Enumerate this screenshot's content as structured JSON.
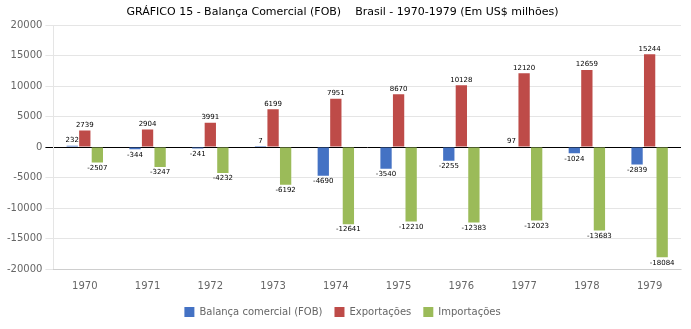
{
  "chart_data": {
    "type": "bar",
    "title": "GRÁFICO 15 - Balança Comercial (FOB)    Brasil - 1970-1979 (Em US$ milhões)",
    "categories": [
      "1970",
      "1971",
      "1972",
      "1973",
      "1974",
      "1975",
      "1976",
      "1977",
      "1978",
      "1979"
    ],
    "series": [
      {
        "name": "Balança comercial (FOB)",
        "color": "#4472C4",
        "values": [
          232,
          -344,
          -241,
          7,
          -4690,
          -3540,
          -2255,
          97,
          -1024,
          -2839
        ]
      },
      {
        "name": "Exportações",
        "color": "#BE4B48",
        "values": [
          2739,
          2904,
          3991,
          6199,
          7951,
          8670,
          10128,
          12120,
          12659,
          15244
        ]
      },
      {
        "name": "Importações",
        "color": "#9BBB59",
        "values": [
          -2507,
          -3247,
          -4232,
          -6192,
          -12641,
          -12210,
          -12383,
          -12023,
          -13683,
          -18084
        ]
      }
    ],
    "ylim": [
      -20000,
      20000
    ],
    "yticks": [
      -20000,
      -15000,
      -10000,
      -5000,
      0,
      5000,
      10000,
      15000,
      20000
    ],
    "grid": true,
    "legend": "bottom",
    "data_labels": true
  }
}
